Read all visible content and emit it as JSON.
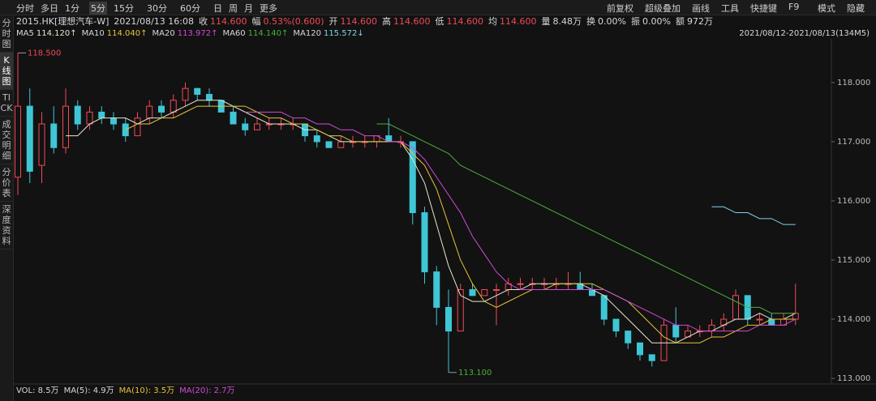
{
  "toolbar": {
    "periods": [
      "分时",
      "多日",
      "1分",
      "5分",
      "15分",
      "30分",
      "60分",
      "日",
      "周",
      "月",
      "更多"
    ],
    "tools": [
      "前复权",
      "超级叠加",
      "画线",
      "工具",
      "快捷键",
      "F9",
      "模式",
      "隐藏"
    ]
  },
  "sidebar": [
    "分时图",
    "K线图",
    "TICK",
    "成交明细",
    "分价表",
    "深度资料"
  ],
  "quote": {
    "symbol": "2015.HK[理想汽车-W]",
    "time": "2021/08/13 16:08",
    "items": [
      {
        "label": "收",
        "value": "114.600",
        "color": "#f24957"
      },
      {
        "label": "幅",
        "value": "0.53%(0.600)",
        "color": "#f24957"
      },
      {
        "label": "开",
        "value": "114.600",
        "color": "#f24957"
      },
      {
        "label": "高",
        "value": "114.600",
        "color": "#f24957"
      },
      {
        "label": "低",
        "value": "114.600",
        "color": "#f24957"
      },
      {
        "label": "均",
        "value": "114.600",
        "color": "#f24957"
      },
      {
        "label": "量",
        "value": "8.48万",
        "color": "#d8d8d8"
      },
      {
        "label": "换",
        "value": "0.00%",
        "color": "#d8d8d8"
      },
      {
        "label": "振",
        "value": "0.00%",
        "color": "#d8d8d8"
      },
      {
        "label": "额",
        "value": "972万",
        "color": "#d8d8d8"
      }
    ]
  },
  "range_label": "2021/08/12-2021/08/13(134M5)",
  "volume": [
    {
      "text": "VOL: 8.5万",
      "color": "#d8d8d8"
    },
    {
      "text": "MA(5): 4.9万",
      "color": "#d8d8d8"
    },
    {
      "text": "MA(10): 3.5万",
      "color": "#e8c23a"
    },
    {
      "text": "MA(20): 2.7万",
      "color": "#d24ad8"
    }
  ],
  "chart_data": {
    "type": "candlestick",
    "up_color": "#f24957",
    "down_color": "#3fc6d6",
    "ylim": [
      112.96,
      118.71
    ],
    "yticks": [
      {
        "value": 113,
        "label": "113.000"
      },
      {
        "value": 114,
        "label": "114.000"
      },
      {
        "value": 115,
        "label": "115.000"
      },
      {
        "value": 116,
        "label": "116.000"
      },
      {
        "value": 117,
        "label": "117.000"
      },
      {
        "value": 118,
        "label": "118.000"
      }
    ],
    "high_label": {
      "value": 118.5,
      "label": "118.500"
    },
    "low_label": {
      "value": 113.1,
      "label": "113.100"
    },
    "ohlc": [
      [
        116.4,
        118.5,
        116.1,
        117.6
      ],
      [
        117.6,
        117.9,
        116.3,
        116.5
      ],
      [
        116.6,
        117.5,
        116.3,
        117.3
      ],
      [
        117.3,
        117.6,
        116.8,
        116.9
      ],
      [
        116.9,
        117.9,
        116.8,
        117.6
      ],
      [
        117.6,
        117.7,
        117.2,
        117.3
      ],
      [
        117.3,
        117.6,
        117.2,
        117.5
      ],
      [
        117.5,
        117.6,
        117.3,
        117.4
      ],
      [
        117.4,
        117.5,
        117.2,
        117.3
      ],
      [
        117.3,
        117.4,
        117.0,
        117.1
      ],
      [
        117.1,
        117.5,
        117.1,
        117.4
      ],
      [
        117.4,
        117.7,
        117.3,
        117.6
      ],
      [
        117.6,
        117.7,
        117.4,
        117.5
      ],
      [
        117.5,
        117.8,
        117.4,
        117.7
      ],
      [
        117.7,
        118.0,
        117.6,
        117.9
      ],
      [
        117.9,
        117.9,
        117.7,
        117.8
      ],
      [
        117.8,
        117.9,
        117.6,
        117.7
      ],
      [
        117.7,
        117.7,
        117.5,
        117.5
      ],
      [
        117.5,
        117.6,
        117.3,
        117.3
      ],
      [
        117.3,
        117.4,
        117.1,
        117.2
      ],
      [
        117.2,
        117.4,
        117.2,
        117.3
      ],
      [
        117.3,
        117.4,
        117.2,
        117.3
      ],
      [
        117.3,
        117.4,
        117.2,
        117.3
      ],
      [
        117.3,
        117.4,
        117.2,
        117.3
      ],
      [
        117.3,
        117.3,
        117.0,
        117.1
      ],
      [
        117.1,
        117.2,
        116.9,
        117.0
      ],
      [
        117.0,
        117.0,
        116.9,
        116.9
      ],
      [
        116.9,
        117.1,
        116.9,
        117.0
      ],
      [
        117.0,
        117.1,
        116.9,
        117.0
      ],
      [
        117.0,
        117.1,
        116.9,
        117.0
      ],
      [
        117.0,
        117.1,
        116.9,
        117.1
      ],
      [
        117.1,
        117.4,
        117.0,
        117.0
      ],
      [
        117.0,
        117.1,
        116.9,
        117.0
      ],
      [
        117.0,
        117.0,
        115.6,
        115.8
      ],
      [
        115.8,
        115.9,
        114.6,
        114.8
      ],
      [
        114.8,
        114.9,
        113.9,
        114.2
      ],
      [
        114.2,
        114.5,
        113.1,
        113.8
      ],
      [
        113.8,
        114.6,
        113.8,
        114.5
      ],
      [
        114.5,
        114.6,
        114.4,
        114.4
      ],
      [
        114.4,
        114.5,
        114.4,
        114.5
      ],
      [
        114.5,
        114.6,
        113.9,
        114.5
      ],
      [
        114.5,
        114.7,
        114.4,
        114.6
      ],
      [
        114.6,
        114.7,
        114.5,
        114.6
      ],
      [
        114.6,
        114.7,
        114.5,
        114.6
      ],
      [
        114.6,
        114.7,
        114.5,
        114.6
      ],
      [
        114.6,
        114.7,
        114.5,
        114.6
      ],
      [
        114.6,
        114.8,
        114.5,
        114.6
      ],
      [
        114.6,
        114.8,
        114.5,
        114.5
      ],
      [
        114.5,
        114.6,
        114.4,
        114.4
      ],
      [
        114.4,
        114.4,
        113.9,
        114.0
      ],
      [
        114.0,
        114.0,
        113.7,
        113.8
      ],
      [
        113.8,
        113.8,
        113.5,
        113.6
      ],
      [
        113.6,
        113.6,
        113.3,
        113.4
      ],
      [
        113.4,
        113.4,
        113.2,
        113.3
      ],
      [
        113.3,
        114.0,
        113.3,
        113.9
      ],
      [
        113.9,
        114.2,
        113.6,
        113.7
      ],
      [
        113.7,
        113.9,
        113.7,
        113.8
      ],
      [
        113.8,
        113.9,
        113.7,
        113.8
      ],
      [
        113.8,
        114.0,
        113.7,
        113.9
      ],
      [
        113.9,
        114.1,
        113.8,
        114.0
      ],
      [
        114.0,
        114.5,
        114.0,
        114.4
      ],
      [
        114.4,
        114.4,
        113.9,
        114.0
      ],
      [
        114.0,
        114.1,
        113.9,
        114.0
      ],
      [
        114.0,
        114.1,
        113.9,
        113.9
      ],
      [
        113.9,
        114.1,
        113.9,
        114.0
      ],
      [
        114.0,
        114.6,
        113.9,
        114.1
      ]
    ],
    "series": [
      {
        "name": "MA5",
        "legend_value": "114.120↑",
        "color": "#e6e6d0",
        "values": [
          null,
          null,
          null,
          null,
          117.1,
          117.1,
          117.3,
          117.4,
          117.4,
          117.4,
          117.3,
          117.4,
          117.4,
          117.5,
          117.6,
          117.7,
          117.7,
          117.7,
          117.6,
          117.5,
          117.4,
          117.3,
          117.3,
          117.3,
          117.2,
          117.2,
          117.1,
          117.0,
          117.0,
          117.0,
          117.0,
          117.0,
          117.0,
          116.7,
          116.3,
          115.6,
          114.9,
          114.4,
          114.3,
          114.3,
          114.4,
          114.5,
          114.5,
          114.6,
          114.6,
          114.6,
          114.6,
          114.6,
          114.5,
          114.4,
          114.2,
          114.0,
          113.8,
          113.6,
          113.6,
          113.6,
          113.7,
          113.8,
          113.8,
          113.9,
          114.0,
          114.0,
          114.1,
          114.0,
          114.0,
          114.1
        ]
      },
      {
        "name": "MA10",
        "legend_value": "114.040↑",
        "color": "#e8c23a",
        "values": [
          null,
          null,
          null,
          null,
          null,
          null,
          null,
          null,
          null,
          117.2,
          117.3,
          117.3,
          117.4,
          117.4,
          117.5,
          117.6,
          117.6,
          117.6,
          117.6,
          117.6,
          117.5,
          117.4,
          117.4,
          117.3,
          117.3,
          117.2,
          117.1,
          117.1,
          117.0,
          117.0,
          117.0,
          117.0,
          117.0,
          116.8,
          116.6,
          116.2,
          115.6,
          115.0,
          114.6,
          114.3,
          114.2,
          114.3,
          114.4,
          114.5,
          114.5,
          114.6,
          114.6,
          114.6,
          114.6,
          114.5,
          114.4,
          114.3,
          114.1,
          113.9,
          113.7,
          113.6,
          113.6,
          113.6,
          113.7,
          113.7,
          113.8,
          113.9,
          113.9,
          114.0,
          114.0,
          114.0
        ]
      },
      {
        "name": "MA20",
        "legend_value": "113.972↑",
        "color": "#d24ad8",
        "values": [
          null,
          null,
          null,
          null,
          null,
          null,
          null,
          null,
          null,
          null,
          null,
          null,
          null,
          null,
          null,
          null,
          null,
          null,
          null,
          117.5,
          117.5,
          117.5,
          117.5,
          117.4,
          117.4,
          117.3,
          117.3,
          117.2,
          117.2,
          117.1,
          117.1,
          117.0,
          117.0,
          116.9,
          116.7,
          116.4,
          116.1,
          115.8,
          115.4,
          115.1,
          114.8,
          114.6,
          114.5,
          114.5,
          114.5,
          114.5,
          114.5,
          114.5,
          114.5,
          114.5,
          114.4,
          114.3,
          114.2,
          114.1,
          114.0,
          113.9,
          113.9,
          113.8,
          113.8,
          113.8,
          113.8,
          113.8,
          113.9,
          113.9,
          113.9,
          114.0
        ]
      },
      {
        "name": "MA60",
        "legend_value": "114.140↑",
        "color": "#4caf3c",
        "values": [
          null,
          null,
          null,
          null,
          null,
          null,
          null,
          null,
          null,
          null,
          null,
          null,
          null,
          null,
          null,
          null,
          null,
          null,
          null,
          null,
          null,
          null,
          null,
          null,
          null,
          null,
          null,
          null,
          null,
          null,
          117.3,
          117.3,
          117.2,
          117.1,
          117.0,
          116.9,
          116.8,
          116.6,
          116.5,
          116.4,
          116.3,
          116.2,
          116.1,
          116.0,
          115.9,
          115.8,
          115.7,
          115.6,
          115.5,
          115.4,
          115.3,
          115.2,
          115.1,
          115.0,
          114.9,
          114.8,
          114.7,
          114.6,
          114.5,
          114.4,
          114.3,
          114.2,
          114.2,
          114.1,
          114.1,
          114.1
        ]
      },
      {
        "name": "MA120",
        "legend_value": "115.572↓",
        "color": "#7fd3e8",
        "values": [
          null,
          null,
          null,
          null,
          null,
          null,
          null,
          null,
          null,
          null,
          null,
          null,
          null,
          null,
          null,
          null,
          null,
          null,
          null,
          null,
          null,
          null,
          null,
          null,
          null,
          null,
          null,
          null,
          null,
          null,
          null,
          null,
          null,
          null,
          null,
          null,
          null,
          null,
          null,
          null,
          null,
          null,
          null,
          null,
          null,
          null,
          null,
          null,
          null,
          null,
          null,
          null,
          null,
          null,
          null,
          null,
          null,
          null,
          115.9,
          115.9,
          115.8,
          115.8,
          115.7,
          115.7,
          115.6,
          115.6
        ]
      }
    ]
  }
}
